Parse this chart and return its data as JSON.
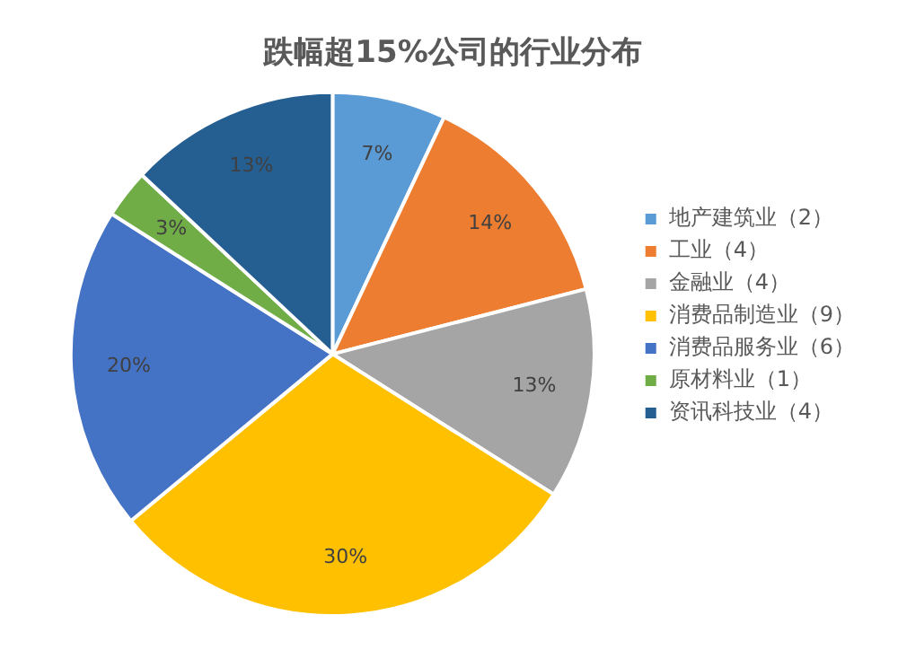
{
  "chart_data": {
    "type": "pie",
    "title": "跌幅超15%公司的行业分布",
    "categories": [
      "地产建筑业（2）",
      "工业（4）",
      "金融业（4）",
      "消费品制造业（9）",
      "消费品服务业（6）",
      "原材料业（1）",
      "资讯科技业（4）"
    ],
    "values": [
      7,
      14,
      13,
      30,
      20,
      3,
      13
    ],
    "colors": [
      "#5b9bd5",
      "#ed7d31",
      "#a5a5a5",
      "#ffc000",
      "#4472c4",
      "#70ad47",
      "#255e91"
    ],
    "value_labels": [
      "7%",
      "14%",
      "13%",
      "30%",
      "20%",
      "3%",
      "13%"
    ],
    "legend": "right"
  }
}
